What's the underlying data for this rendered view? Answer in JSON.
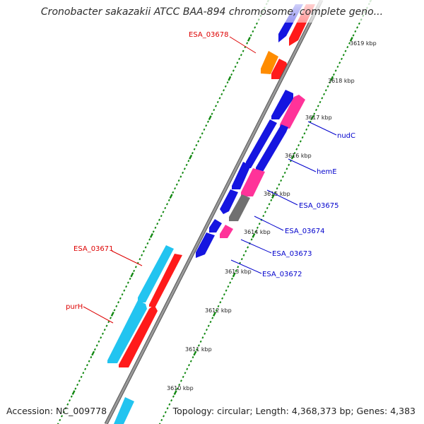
{
  "title": "Cronobacter sakazakii ATCC BAA-894 chromosome, complete geno...",
  "footer": {
    "accession": "Accession: NC_009778",
    "topology": "Topology: circular; Length: 4,368,373 bp; Genes: 4,383"
  },
  "ticks": [
    "3610 kbp",
    "3611 kbp",
    "3612 kbp",
    "3613 kbp",
    "3614 kbp",
    "3615 kbp",
    "3616 kbp",
    "3617 kbp",
    "3618 kbp",
    "3619 kbp"
  ],
  "gene_labels": {
    "esa_03678": "ESA_03678",
    "nudc": "nudC",
    "heme": "hemE",
    "esa_03675": "ESA_03675",
    "esa_03674": "ESA_03674",
    "esa_03673": "ESA_03673",
    "esa_03672": "ESA_03672",
    "esa_03671": "ESA_03671",
    "purh": "purH"
  },
  "colors": {
    "forward_cds": "#ff1a1a",
    "reverse_cds": "#1515e0",
    "rna": "#ff3399",
    "pseudo": "#ff8c00",
    "other": "#707070",
    "cyan_cds": "#22c4f0",
    "backbone": "#8a8a8a",
    "tick": "#118811",
    "label_red": "#dd0000",
    "label_blue": "#0000cc"
  }
}
